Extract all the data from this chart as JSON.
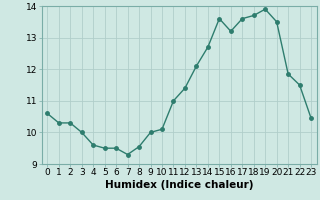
{
  "x": [
    0,
    1,
    2,
    3,
    4,
    5,
    6,
    7,
    8,
    9,
    10,
    11,
    12,
    13,
    14,
    15,
    16,
    17,
    18,
    19,
    20,
    21,
    22,
    23
  ],
  "y": [
    10.6,
    10.3,
    10.3,
    10.0,
    9.6,
    9.5,
    9.5,
    9.3,
    9.55,
    10.0,
    10.1,
    11.0,
    11.4,
    12.1,
    12.7,
    13.6,
    13.2,
    13.6,
    13.7,
    13.9,
    13.5,
    11.85,
    11.5,
    10.45
  ],
  "line_color": "#2e7d6e",
  "marker": "o",
  "marker_size": 2.5,
  "bg_color": "#cfe8e3",
  "grid_color": "#b0ceca",
  "xlabel": "Humidex (Indice chaleur)",
  "ylim": [
    9,
    14
  ],
  "xlim": [
    -0.5,
    23.5
  ],
  "yticks": [
    9,
    10,
    11,
    12,
    13,
    14
  ],
  "xticks": [
    0,
    1,
    2,
    3,
    4,
    5,
    6,
    7,
    8,
    9,
    10,
    11,
    12,
    13,
    14,
    15,
    16,
    17,
    18,
    19,
    20,
    21,
    22,
    23
  ],
  "tick_fontsize": 6.5,
  "xlabel_fontsize": 7.5,
  "line_width": 1.0
}
